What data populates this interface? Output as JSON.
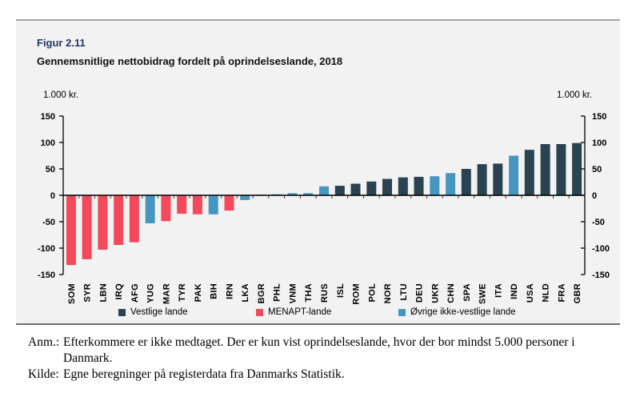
{
  "figure": {
    "label": "Figur 2.11"
  },
  "chart_data": {
    "type": "bar",
    "title": "Gennemsnitlige nettobidrag fordelt på oprindelseslande, 2018",
    "unit_left": "1.000 kr.",
    "unit_right": "1.000 kr.",
    "ylim": [
      -150,
      150
    ],
    "yticks": [
      150,
      100,
      50,
      0,
      -50,
      -100,
      -150
    ],
    "grid": false,
    "legend_position": "bottom",
    "categories": [
      "SOM",
      "SYR",
      "LBN",
      "IRQ",
      "AFG",
      "YUG",
      "MAR",
      "TYR",
      "PAK",
      "BIH",
      "IRN",
      "LKA",
      "BGR",
      "PHL",
      "VNM",
      "THA",
      "RUS",
      "ISL",
      "ROM",
      "POL",
      "NOR",
      "LTU",
      "DEU",
      "UKR",
      "CHN",
      "SPA",
      "SWE",
      "ITA",
      "IND",
      "USA",
      "NLD",
      "FRA",
      "GBR"
    ],
    "values": [
      -132,
      -121,
      -103,
      -94,
      -89,
      -53,
      -49,
      -35,
      -36,
      -36,
      -29,
      -9,
      1,
      2,
      4,
      4,
      17,
      18,
      22,
      26,
      31,
      34,
      35,
      36,
      42,
      50,
      59,
      60,
      75,
      86,
      97,
      97,
      99
    ],
    "groups": [
      "menapt",
      "menapt",
      "menapt",
      "menapt",
      "menapt",
      "ovrige",
      "menapt",
      "menapt",
      "menapt",
      "ovrige",
      "menapt",
      "ovrige",
      "vestlige",
      "ovrige",
      "ovrige",
      "ovrige",
      "ovrige",
      "vestlige",
      "vestlige",
      "vestlige",
      "vestlige",
      "vestlige",
      "vestlige",
      "ovrige",
      "ovrige",
      "vestlige",
      "vestlige",
      "vestlige",
      "ovrige",
      "vestlige",
      "vestlige",
      "vestlige",
      "vestlige"
    ],
    "series_colors": {
      "vestlige": "#2b4250",
      "menapt": "#f4495a",
      "ovrige": "#4796c0"
    },
    "legend": [
      {
        "key": "vestlige",
        "label": "Vestlige lande",
        "color": "#2b4250"
      },
      {
        "key": "menapt",
        "label": "MENAPT-lande",
        "color": "#f4495a"
      },
      {
        "key": "ovrige",
        "label": "Øvrige ikke-vestlige lande",
        "color": "#4796c0"
      }
    ]
  },
  "notes": {
    "anm_label": "Anm.:",
    "anm_text": "Efterkommere er ikke medtaget. Der er kun vist oprindelseslande, hvor der bor mindst 5.000 personer i Danmark.",
    "kilde_label": "Kilde:",
    "kilde_text": "Egne beregninger på registerdata fra Danmarks Statistik."
  }
}
